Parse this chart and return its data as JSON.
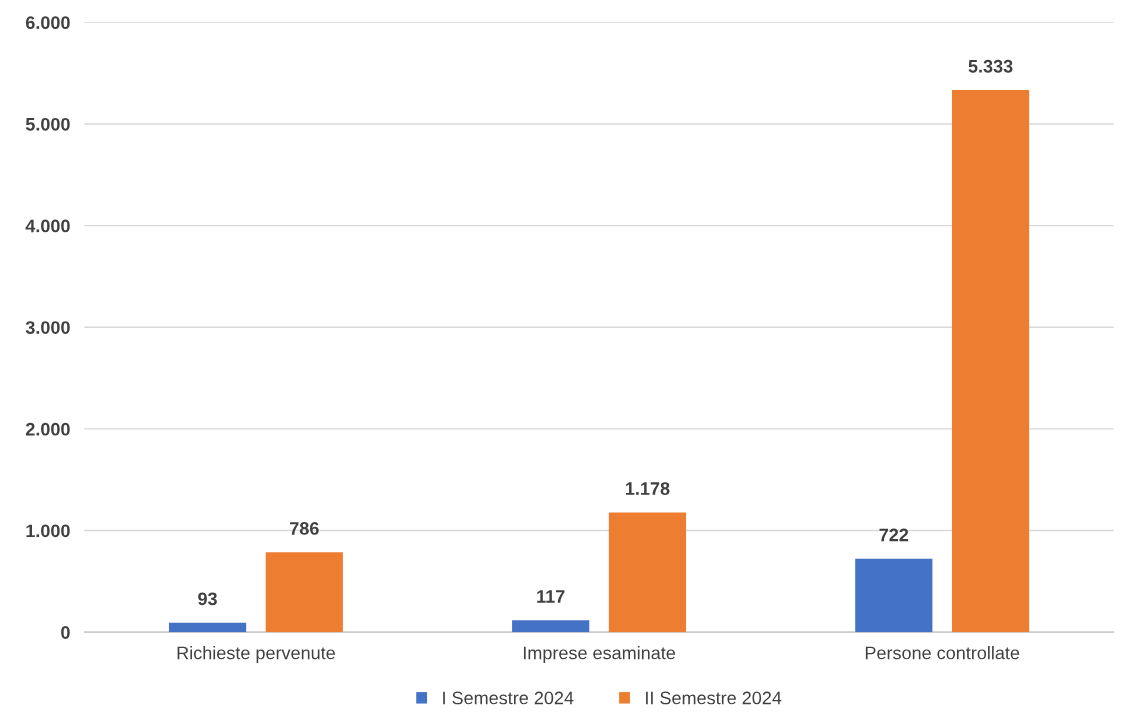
{
  "chart_data": {
    "type": "bar",
    "categories": [
      "Richieste pervenute",
      "Imprese esaminate",
      "Persone controllate"
    ],
    "series": [
      {
        "name": "I Semestre 2024",
        "color": "#4472c4",
        "values": [
          93,
          117,
          722
        ],
        "value_labels": [
          "93",
          "117",
          "722"
        ]
      },
      {
        "name": "II Semestre 2024",
        "color": "#ed7d31",
        "values": [
          786,
          1178,
          5333
        ],
        "value_labels": [
          "786",
          "1.178",
          "5.333"
        ]
      }
    ],
    "ylim": [
      0,
      6000
    ],
    "yticks": [
      {
        "value": 0,
        "label": "0"
      },
      {
        "value": 1000,
        "label": "1.000"
      },
      {
        "value": 2000,
        "label": "2.000"
      },
      {
        "value": 3000,
        "label": "3.000"
      },
      {
        "value": 4000,
        "label": "4.000"
      },
      {
        "value": 5000,
        "label": "5.000"
      },
      {
        "value": 6000,
        "label": "6.000"
      }
    ],
    "grid": "y",
    "legend": "bottom"
  }
}
